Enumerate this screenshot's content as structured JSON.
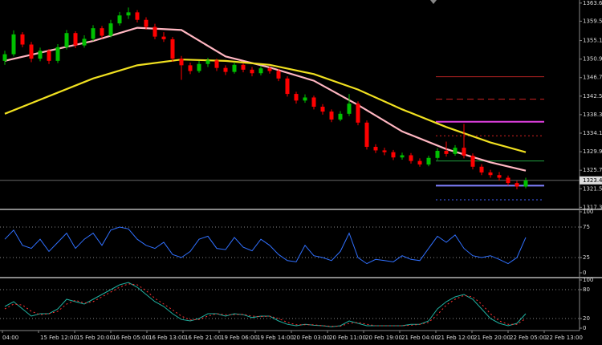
{
  "chart_data": [
    {
      "type": "candlestick",
      "ylim": [
        1317.0,
        1364.3
      ],
      "yticks": [
        1363.6,
        1359.5,
        1355.1,
        1350.9,
        1346.7,
        1342.5,
        1338.3,
        1334.1,
        1329.9,
        1325.7,
        1321.5,
        1317.3
      ],
      "up_color": "#00c000",
      "down_color": "#ff0000",
      "candles": [
        [
          1350.5,
          1352.8,
          1349.6,
          1352.0
        ],
        [
          1352.0,
          1357.4,
          1351.5,
          1356.5
        ],
        [
          1356.5,
          1357.0,
          1353.6,
          1354.2
        ],
        [
          1354.2,
          1354.8,
          1350.2,
          1351.0
        ],
        [
          1351.0,
          1353.5,
          1350.4,
          1352.8
        ],
        [
          1352.8,
          1353.2,
          1349.8,
          1350.5
        ],
        [
          1350.5,
          1354.3,
          1350.0,
          1353.6
        ],
        [
          1353.6,
          1357.5,
          1353.1,
          1356.8
        ],
        [
          1356.8,
          1357.2,
          1353.4,
          1354.0
        ],
        [
          1354.0,
          1356.3,
          1353.5,
          1355.5
        ],
        [
          1355.5,
          1358.6,
          1355.0,
          1357.9
        ],
        [
          1357.9,
          1358.4,
          1355.6,
          1356.2
        ],
        [
          1356.2,
          1359.8,
          1355.8,
          1359.0
        ],
        [
          1359.0,
          1361.6,
          1358.5,
          1360.8
        ],
        [
          1360.8,
          1362.6,
          1360.0,
          1361.5
        ],
        [
          1361.5,
          1362.0,
          1359.2,
          1359.8
        ],
        [
          1359.8,
          1360.4,
          1357.6,
          1358.2
        ],
        [
          1358.2,
          1358.9,
          1355.4,
          1356.0
        ],
        [
          1356.0,
          1357.0,
          1354.8,
          1355.4
        ],
        [
          1355.4,
          1355.9,
          1350.3,
          1351.0
        ],
        [
          1351.0,
          1351.6,
          1346.2,
          1349.5
        ],
        [
          1349.5,
          1350.1,
          1347.5,
          1348.2
        ],
        [
          1348.2,
          1350.5,
          1347.8,
          1349.8
        ],
        [
          1349.8,
          1351.2,
          1349.1,
          1350.6
        ],
        [
          1350.6,
          1351.0,
          1348.2,
          1348.9
        ],
        [
          1348.9,
          1349.5,
          1347.3,
          1348.0
        ],
        [
          1348.0,
          1350.2,
          1347.6,
          1349.6
        ],
        [
          1349.6,
          1350.0,
          1347.9,
          1348.5
        ],
        [
          1348.5,
          1349.1,
          1347.0,
          1347.7
        ],
        [
          1347.7,
          1349.4,
          1347.2,
          1348.8
        ],
        [
          1348.8,
          1349.3,
          1347.6,
          1348.2
        ],
        [
          1348.2,
          1348.7,
          1345.9,
          1346.5
        ],
        [
          1346.5,
          1347.0,
          1342.4,
          1343.0
        ],
        [
          1343.0,
          1343.5,
          1340.8,
          1341.5
        ],
        [
          1341.5,
          1342.9,
          1341.0,
          1342.2
        ],
        [
          1342.2,
          1342.6,
          1339.5,
          1340.1
        ],
        [
          1340.1,
          1340.7,
          1338.3,
          1339.0
        ],
        [
          1339.0,
          1339.5,
          1336.6,
          1337.2
        ],
        [
          1337.2,
          1339.1,
          1336.8,
          1338.5
        ],
        [
          1338.5,
          1343.0,
          1338.0,
          1340.8
        ],
        [
          1340.8,
          1341.3,
          1335.9,
          1336.5
        ],
        [
          1336.5,
          1337.0,
          1330.4,
          1331.0
        ],
        [
          1331.0,
          1331.6,
          1329.6,
          1330.2
        ],
        [
          1330.2,
          1330.8,
          1329.1,
          1329.8
        ],
        [
          1329.8,
          1330.3,
          1328.0,
          1328.6
        ],
        [
          1328.6,
          1329.7,
          1328.1,
          1329.1
        ],
        [
          1329.1,
          1329.6,
          1327.2,
          1327.8
        ],
        [
          1327.8,
          1328.4,
          1326.5,
          1327.0
        ],
        [
          1327.0,
          1329.0,
          1326.6,
          1328.5
        ],
        [
          1328.5,
          1330.7,
          1328.0,
          1330.1
        ],
        [
          1330.1,
          1332.2,
          1328.8,
          1329.4
        ],
        [
          1329.4,
          1331.4,
          1329.0,
          1330.8
        ],
        [
          1330.8,
          1336.2,
          1328.4,
          1329.0
        ],
        [
          1329.0,
          1329.5,
          1325.9,
          1326.5
        ],
        [
          1326.5,
          1327.1,
          1324.6,
          1325.2
        ],
        [
          1325.2,
          1325.8,
          1324.0,
          1324.6
        ],
        [
          1324.6,
          1325.3,
          1323.4,
          1324.0
        ],
        [
          1324.0,
          1324.5,
          1322.2,
          1322.8
        ],
        [
          1322.8,
          1323.3,
          1321.4,
          1322.0
        ],
        [
          1322.0,
          1324.0,
          1321.6,
          1323.4
        ]
      ],
      "series": [
        {
          "color": "#ffb6c1",
          "x": [
            0,
            5,
            10,
            15,
            20,
            25,
            30,
            35,
            40,
            45,
            50,
            55,
            59
          ],
          "values": [
            1350.5,
            1352.8,
            1355.0,
            1358.0,
            1357.5,
            1351.5,
            1349.0,
            1346.0,
            1340.5,
            1334.5,
            1330.5,
            1327.5,
            1325.6
          ]
        },
        {
          "color": "#f0e020",
          "x": [
            0,
            5,
            10,
            15,
            20,
            25,
            30,
            35,
            40,
            45,
            50,
            55,
            59
          ],
          "values": [
            1338.5,
            1342.5,
            1346.5,
            1349.5,
            1350.8,
            1350.5,
            1349.6,
            1347.5,
            1344.0,
            1339.5,
            1335.5,
            1332.0,
            1329.8
          ]
        }
      ],
      "levels": [
        {
          "value": 1346.9,
          "color": "#b22222",
          "style": "solid"
        },
        {
          "value": 1341.8,
          "color": "#d02020",
          "style": "dashed"
        },
        {
          "value": 1336.7,
          "color": "#e040e0",
          "style": "thick"
        },
        {
          "value": 1333.5,
          "color": "#d02020",
          "style": "dotted"
        },
        {
          "value": 1327.8,
          "color": "#20a040",
          "style": "solid"
        },
        {
          "value": 1322.2,
          "color": "#8080ff",
          "style": "thick"
        },
        {
          "value": 1319.0,
          "color": "#4060ff",
          "style": "dotted"
        }
      ],
      "last_price": 1323.4
    },
    {
      "type": "line",
      "ylim": [
        0,
        100
      ],
      "yticks": [
        100,
        75,
        25,
        0
      ],
      "dotted_levels": [
        75,
        25
      ],
      "series": [
        {
          "color": "#3070ff",
          "style": "solid",
          "values": [
            55,
            70,
            45,
            40,
            55,
            35,
            50,
            65,
            40,
            55,
            65,
            45,
            70,
            75,
            72,
            55,
            45,
            40,
            50,
            30,
            25,
            35,
            55,
            60,
            40,
            38,
            58,
            42,
            36,
            55,
            45,
            30,
            20,
            18,
            45,
            28,
            25,
            20,
            35,
            65,
            25,
            15,
            22,
            20,
            18,
            28,
            22,
            20,
            40,
            60,
            50,
            62,
            40,
            28,
            25,
            28,
            22,
            15,
            25,
            58
          ]
        }
      ]
    },
    {
      "type": "line",
      "ylim": [
        0,
        100
      ],
      "yticks": [
        100,
        80,
        20,
        0
      ],
      "dotted_levels": [
        80,
        20
      ],
      "series": [
        {
          "color": "#20b0a0",
          "style": "solid",
          "values": [
            45,
            55,
            40,
            25,
            30,
            30,
            40,
            60,
            55,
            50,
            60,
            70,
            80,
            90,
            95,
            85,
            70,
            55,
            45,
            30,
            18,
            15,
            20,
            30,
            30,
            25,
            30,
            28,
            22,
            25,
            25,
            15,
            8,
            5,
            8,
            6,
            5,
            3,
            5,
            15,
            10,
            5,
            5,
            5,
            5,
            5,
            8,
            8,
            15,
            40,
            55,
            65,
            70,
            60,
            40,
            20,
            10,
            5,
            10,
            30
          ]
        },
        {
          "color": "#ff3030",
          "style": "dotted",
          "values": [
            40,
            50,
            48,
            35,
            28,
            30,
            35,
            50,
            58,
            52,
            55,
            65,
            75,
            85,
            92,
            90,
            78,
            62,
            50,
            38,
            25,
            17,
            18,
            25,
            30,
            28,
            28,
            29,
            25,
            24,
            25,
            20,
            12,
            7,
            7,
            7,
            5,
            4,
            4,
            10,
            12,
            8,
            5,
            5,
            5,
            5,
            6,
            8,
            12,
            28,
            48,
            60,
            68,
            65,
            50,
            30,
            15,
            8,
            8,
            20
          ]
        }
      ]
    }
  ],
  "x_labels": [
    "04:00",
    "15 Feb 12:00",
    "15 Feb 20:00",
    "16 Feb 05:00",
    "16 Feb 13:00",
    "16 Feb 21:00",
    "19 Feb 06:00",
    "19 Feb 14:00",
    "20 Feb 03:00",
    "20 Feb 11:00",
    "20 Feb 19:00",
    "21 Feb 04:00",
    "21 Feb 12:00",
    "21 Feb 20:00",
    "22 Feb 05:00",
    "22 Feb 13:00"
  ]
}
